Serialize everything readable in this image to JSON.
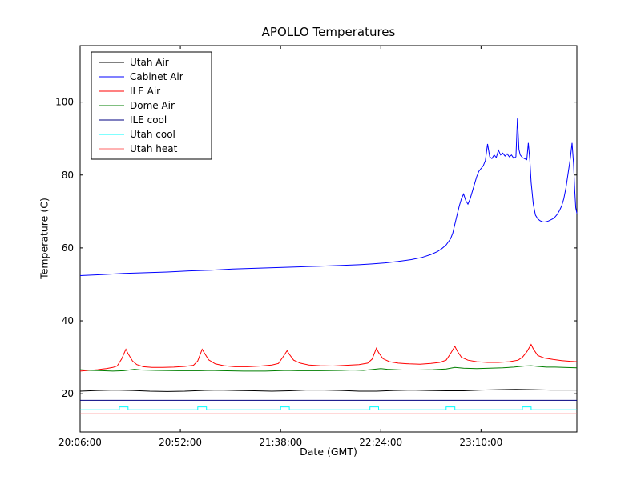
{
  "figure": {
    "background": "#ffffff",
    "axes_edge_color": "#000000"
  },
  "chart_data": {
    "type": "line",
    "title": "APOLLO Temperatures",
    "xlabel": "Date (GMT)",
    "ylabel": "Temperature (C)",
    "grid": false,
    "legend_position": "upper left",
    "xlim": [
      0,
      228
    ],
    "ylim": [
      9.5,
      115.5
    ],
    "x_ticks": [
      {
        "label": "20:06:00",
        "min": 0
      },
      {
        "label": "20:52:00",
        "min": 46
      },
      {
        "label": "21:38:00",
        "min": 92
      },
      {
        "label": "22:24:00",
        "min": 138
      },
      {
        "label": "23:10:00",
        "min": 184
      }
    ],
    "y_ticks": [
      20,
      40,
      60,
      80,
      100
    ],
    "series": [
      {
        "name": "Utah Air",
        "color": "#000000",
        "points": [
          [
            0,
            20.7
          ],
          [
            8,
            20.9
          ],
          [
            16,
            21.0
          ],
          [
            24,
            20.9
          ],
          [
            32,
            20.7
          ],
          [
            40,
            20.6
          ],
          [
            48,
            20.7
          ],
          [
            56,
            20.9
          ],
          [
            64,
            21.0
          ],
          [
            72,
            20.9
          ],
          [
            80,
            20.8
          ],
          [
            88,
            20.7
          ],
          [
            96,
            20.8
          ],
          [
            104,
            21.0
          ],
          [
            112,
            21.0
          ],
          [
            120,
            20.9
          ],
          [
            128,
            20.7
          ],
          [
            136,
            20.7
          ],
          [
            144,
            20.9
          ],
          [
            152,
            21.0
          ],
          [
            160,
            20.9
          ],
          [
            168,
            20.8
          ],
          [
            176,
            20.8
          ],
          [
            184,
            21.0
          ],
          [
            192,
            21.1
          ],
          [
            200,
            21.2
          ],
          [
            208,
            21.1
          ],
          [
            216,
            21.0
          ],
          [
            224,
            21.0
          ],
          [
            228,
            21.0
          ]
        ]
      },
      {
        "name": "Cabinet Air",
        "color": "#0000ff",
        "points": [
          [
            0,
            52.4
          ],
          [
            10,
            52.7
          ],
          [
            20,
            53.0
          ],
          [
            30,
            53.2
          ],
          [
            40,
            53.4
          ],
          [
            50,
            53.7
          ],
          [
            60,
            53.9
          ],
          [
            70,
            54.2
          ],
          [
            80,
            54.4
          ],
          [
            90,
            54.6
          ],
          [
            100,
            54.8
          ],
          [
            110,
            55.0
          ],
          [
            120,
            55.2
          ],
          [
            128,
            55.4
          ],
          [
            134,
            55.6
          ],
          [
            140,
            55.9
          ],
          [
            146,
            56.3
          ],
          [
            152,
            56.8
          ],
          [
            157,
            57.4
          ],
          [
            161,
            58.2
          ],
          [
            164,
            59.0
          ],
          [
            166,
            59.8
          ],
          [
            168,
            60.8
          ],
          [
            170,
            62.5
          ],
          [
            171,
            64.0
          ],
          [
            172,
            66.5
          ],
          [
            173,
            69.0
          ],
          [
            174,
            71.5
          ],
          [
            175,
            73.5
          ],
          [
            176,
            74.8
          ],
          [
            177,
            73.0
          ],
          [
            178,
            72.0
          ],
          [
            179,
            73.5
          ],
          [
            180,
            75.5
          ],
          [
            181,
            77.5
          ],
          [
            182,
            79.5
          ],
          [
            183,
            81.0
          ],
          [
            184,
            81.8
          ],
          [
            185,
            82.5
          ],
          [
            186,
            84.0
          ],
          [
            187,
            88.5
          ],
          [
            188,
            85.0
          ],
          [
            189,
            84.5
          ],
          [
            190,
            85.5
          ],
          [
            191,
            84.8
          ],
          [
            192,
            86.8
          ],
          [
            193,
            85.5
          ],
          [
            194,
            86.0
          ],
          [
            195,
            85.2
          ],
          [
            196,
            85.8
          ],
          [
            197,
            85.0
          ],
          [
            198,
            85.5
          ],
          [
            199,
            84.6
          ],
          [
            200,
            85.0
          ],
          [
            200.7,
            95.5
          ],
          [
            201.4,
            87.0
          ],
          [
            202,
            85.5
          ],
          [
            203,
            84.8
          ],
          [
            204,
            84.5
          ],
          [
            205,
            84.2
          ],
          [
            205.7,
            88.8
          ],
          [
            206.4,
            84.0
          ],
          [
            207,
            78.0
          ],
          [
            208,
            72.0
          ],
          [
            209,
            69.0
          ],
          [
            210,
            68.0
          ],
          [
            211,
            67.5
          ],
          [
            212,
            67.2
          ],
          [
            213,
            67.1
          ],
          [
            214,
            67.2
          ],
          [
            215,
            67.4
          ],
          [
            216,
            67.7
          ],
          [
            217,
            68.0
          ],
          [
            218,
            68.5
          ],
          [
            219,
            69.2
          ],
          [
            220,
            70.2
          ],
          [
            221,
            71.5
          ],
          [
            222,
            73.5
          ],
          [
            223,
            76.5
          ],
          [
            224,
            80.5
          ],
          [
            225,
            84.5
          ],
          [
            225.8,
            88.8
          ],
          [
            226.5,
            83.0
          ],
          [
            227,
            76.0
          ],
          [
            227.5,
            71.0
          ],
          [
            228,
            69.5
          ]
        ]
      },
      {
        "name": "ILE Air",
        "color": "#ff0000",
        "points": [
          [
            0,
            26.2
          ],
          [
            4,
            26.4
          ],
          [
            8,
            26.6
          ],
          [
            12,
            26.9
          ],
          [
            15,
            27.2
          ],
          [
            17,
            27.6
          ],
          [
            19,
            29.5
          ],
          [
            21,
            32.2
          ],
          [
            22,
            31.0
          ],
          [
            24,
            29.0
          ],
          [
            26,
            28.0
          ],
          [
            29,
            27.4
          ],
          [
            33,
            27.2
          ],
          [
            38,
            27.2
          ],
          [
            43,
            27.3
          ],
          [
            48,
            27.5
          ],
          [
            52,
            27.8
          ],
          [
            54,
            29.0
          ],
          [
            56,
            32.2
          ],
          [
            57,
            31.2
          ],
          [
            59,
            29.3
          ],
          [
            62,
            28.2
          ],
          [
            66,
            27.7
          ],
          [
            71,
            27.4
          ],
          [
            77,
            27.4
          ],
          [
            83,
            27.6
          ],
          [
            88,
            27.9
          ],
          [
            91,
            28.3
          ],
          [
            93,
            30.0
          ],
          [
            95,
            31.8
          ],
          [
            96,
            30.8
          ],
          [
            98,
            29.2
          ],
          [
            101,
            28.4
          ],
          [
            105,
            27.9
          ],
          [
            110,
            27.7
          ],
          [
            116,
            27.6
          ],
          [
            122,
            27.8
          ],
          [
            128,
            28.0
          ],
          [
            132,
            28.4
          ],
          [
            134,
            29.5
          ],
          [
            136,
            32.5
          ],
          [
            137,
            31.3
          ],
          [
            139,
            29.6
          ],
          [
            142,
            28.8
          ],
          [
            146,
            28.4
          ],
          [
            151,
            28.2
          ],
          [
            156,
            28.1
          ],
          [
            161,
            28.3
          ],
          [
            165,
            28.6
          ],
          [
            168,
            29.2
          ],
          [
            170,
            31.0
          ],
          [
            172,
            33.0
          ],
          [
            173,
            31.8
          ],
          [
            175,
            30.0
          ],
          [
            178,
            29.2
          ],
          [
            182,
            28.8
          ],
          [
            187,
            28.6
          ],
          [
            192,
            28.6
          ],
          [
            197,
            28.8
          ],
          [
            201,
            29.2
          ],
          [
            203,
            30.0
          ],
          [
            205,
            31.5
          ],
          [
            207,
            33.5
          ],
          [
            208,
            32.3
          ],
          [
            210,
            30.5
          ],
          [
            213,
            29.8
          ],
          [
            217,
            29.4
          ],
          [
            221,
            29.1
          ],
          [
            225,
            28.9
          ],
          [
            228,
            28.8
          ]
        ]
      },
      {
        "name": "Dome Air",
        "color": "#007f00",
        "points": [
          [
            0,
            26.6
          ],
          [
            5,
            26.4
          ],
          [
            10,
            26.3
          ],
          [
            15,
            26.2
          ],
          [
            20,
            26.3
          ],
          [
            25,
            26.7
          ],
          [
            28,
            26.5
          ],
          [
            35,
            26.4
          ],
          [
            45,
            26.3
          ],
          [
            55,
            26.3
          ],
          [
            60,
            26.4
          ],
          [
            65,
            26.3
          ],
          [
            75,
            26.2
          ],
          [
            85,
            26.2
          ],
          [
            95,
            26.4
          ],
          [
            100,
            26.3
          ],
          [
            110,
            26.3
          ],
          [
            120,
            26.4
          ],
          [
            125,
            26.5
          ],
          [
            130,
            26.4
          ],
          [
            138,
            26.9
          ],
          [
            141,
            26.7
          ],
          [
            148,
            26.5
          ],
          [
            155,
            26.5
          ],
          [
            162,
            26.6
          ],
          [
            168,
            26.8
          ],
          [
            172,
            27.2
          ],
          [
            176,
            27.0
          ],
          [
            182,
            26.9
          ],
          [
            188,
            27.0
          ],
          [
            194,
            27.1
          ],
          [
            199,
            27.3
          ],
          [
            204,
            27.6
          ],
          [
            207,
            27.7
          ],
          [
            210,
            27.5
          ],
          [
            214,
            27.3
          ],
          [
            218,
            27.3
          ],
          [
            222,
            27.2
          ],
          [
            228,
            27.1
          ]
        ]
      },
      {
        "name": "ILE cool",
        "color": "#000080",
        "points": [
          [
            0,
            18.2
          ],
          [
            228,
            18.2
          ]
        ]
      },
      {
        "name": "Utah cool",
        "color": "#00ffff",
        "points": [
          [
            0,
            15.6
          ],
          [
            18,
            15.6
          ],
          [
            18,
            16.4
          ],
          [
            22,
            16.4
          ],
          [
            22,
            15.6
          ],
          [
            54,
            15.6
          ],
          [
            54,
            16.4
          ],
          [
            58,
            16.4
          ],
          [
            58,
            15.6
          ],
          [
            92,
            15.6
          ],
          [
            92,
            16.4
          ],
          [
            96,
            16.4
          ],
          [
            96,
            15.6
          ],
          [
            133,
            15.6
          ],
          [
            133,
            16.4
          ],
          [
            137,
            16.4
          ],
          [
            137,
            15.6
          ],
          [
            168,
            15.6
          ],
          [
            168,
            16.4
          ],
          [
            172,
            16.4
          ],
          [
            172,
            15.6
          ],
          [
            203,
            15.6
          ],
          [
            203,
            16.4
          ],
          [
            207,
            16.4
          ],
          [
            207,
            15.6
          ],
          [
            228,
            15.6
          ]
        ]
      },
      {
        "name": "Utah heat",
        "color": "#ff6666",
        "points": [
          [
            0,
            14.5
          ],
          [
            228,
            14.5
          ]
        ]
      }
    ]
  }
}
